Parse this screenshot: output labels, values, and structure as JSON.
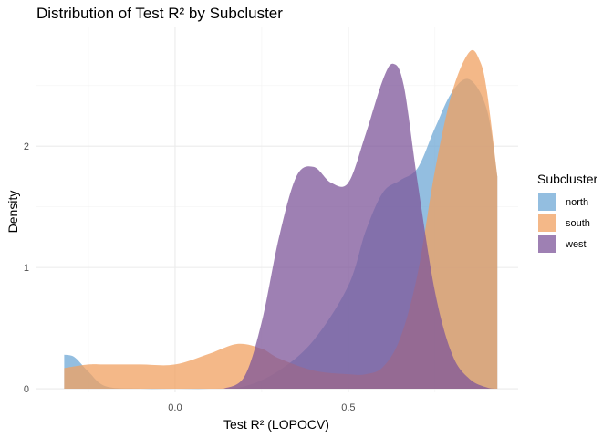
{
  "chart_data": {
    "type": "area",
    "title": "Distribution of Test R² by Subcluster",
    "xlabel": "Test R² (LOPOCV)",
    "ylabel": "Density",
    "xlim": [
      -0.4,
      0.99
    ],
    "ylim": [
      -0.03,
      2.98
    ],
    "x_ticks": [
      0.0,
      0.5
    ],
    "x_tick_labels": [
      "0.0",
      "0.5"
    ],
    "y_ticks": [
      0,
      1,
      2
    ],
    "y_tick_labels": [
      "0",
      "1",
      "2"
    ],
    "grid": true,
    "legend": {
      "title": "Subcluster",
      "position": "right"
    },
    "series": [
      {
        "name": "north",
        "color": "#6fa8d6",
        "x": [
          -0.32,
          -0.29,
          -0.25,
          -0.2,
          -0.1,
          0.0,
          0.1,
          0.2,
          0.3,
          0.4,
          0.5,
          0.55,
          0.6,
          0.65,
          0.7,
          0.75,
          0.8,
          0.85,
          0.9,
          0.93
        ],
        "values": [
          0.28,
          0.26,
          0.14,
          0.02,
          0.0,
          0.0,
          0.0,
          0.02,
          0.15,
          0.4,
          0.85,
          1.3,
          1.62,
          1.72,
          1.82,
          2.15,
          2.45,
          2.55,
          2.3,
          1.75
        ]
      },
      {
        "name": "south",
        "color": "#f0a060",
        "x": [
          -0.32,
          -0.25,
          -0.2,
          -0.1,
          0.0,
          0.1,
          0.18,
          0.25,
          0.3,
          0.4,
          0.5,
          0.55,
          0.6,
          0.65,
          0.7,
          0.75,
          0.8,
          0.85,
          0.88,
          0.9,
          0.93
        ],
        "values": [
          0.17,
          0.2,
          0.2,
          0.2,
          0.2,
          0.29,
          0.37,
          0.33,
          0.25,
          0.15,
          0.12,
          0.12,
          0.18,
          0.42,
          0.95,
          1.8,
          2.45,
          2.78,
          2.7,
          2.45,
          1.75
        ]
      },
      {
        "name": "west",
        "color": "#7d559a",
        "x": [
          0.14,
          0.2,
          0.25,
          0.3,
          0.35,
          0.4,
          0.45,
          0.5,
          0.55,
          0.6,
          0.63,
          0.66,
          0.7,
          0.75,
          0.8,
          0.85,
          0.9,
          0.93
        ],
        "values": [
          0.0,
          0.1,
          0.55,
          1.25,
          1.75,
          1.83,
          1.7,
          1.7,
          2.1,
          2.55,
          2.68,
          2.5,
          1.7,
          0.8,
          0.28,
          0.08,
          0.01,
          0.0
        ]
      }
    ]
  }
}
